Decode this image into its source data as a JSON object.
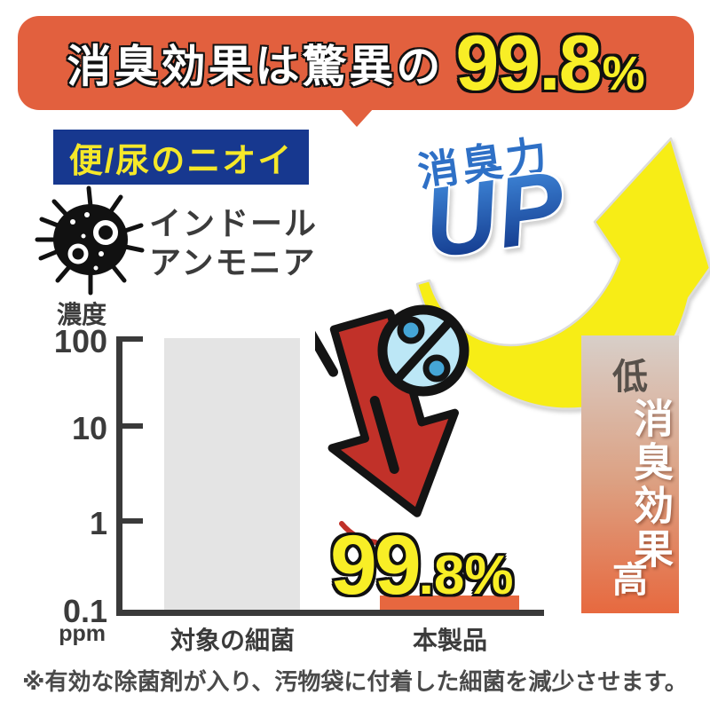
{
  "banner": {
    "prefix": "消臭効果は驚異の",
    "number": "99.8",
    "percent_sign": "%",
    "bg_color": "#e2603e",
    "text_color": "#ffffff",
    "accent_color": "#f8ee26"
  },
  "odor_label": {
    "text": "便/尿のニオイ",
    "bg_color": "#17388f",
    "text_color": "#f5e829"
  },
  "odor_substances": {
    "line1": "インドール",
    "line2": "アンモニア",
    "icon": "bacteria-icon"
  },
  "power_up": {
    "label": "消臭力",
    "up": "UP",
    "icon": "up-arrow-swoosh-icon",
    "label_color": "#2e70c6",
    "arrow_color": "#f7ed16"
  },
  "chart_data": {
    "type": "bar",
    "title": "",
    "ylabel": "濃度",
    "yunit": "ppm",
    "yscale": "log",
    "ylim": [
      0.1,
      100
    ],
    "yticks": [
      100,
      10,
      1,
      0.1
    ],
    "categories": [
      "対象の細菌",
      "本製品"
    ],
    "values": [
      100,
      0.15
    ],
    "bar_colors": [
      "#e4e4e4",
      "#e7673f"
    ],
    "grid": false,
    "legend": false,
    "annotation": "99.8%",
    "axis_color": "#3a3a3a"
  },
  "reduction": {
    "big": "99",
    "small": ".8%",
    "icon": "percent-down-arrow-icon",
    "arrow_color": "#c13129",
    "badge_color": "#bce7f6"
  },
  "effect_scale": {
    "low": "低",
    "label": "消臭効果",
    "high": "高",
    "gradient_top": "#d8cfc9",
    "gradient_bottom": "#e7693f"
  },
  "footnote": {
    "text": "※有効な除菌剤が入り、汚物袋に付着した細菌を減少させます。"
  }
}
